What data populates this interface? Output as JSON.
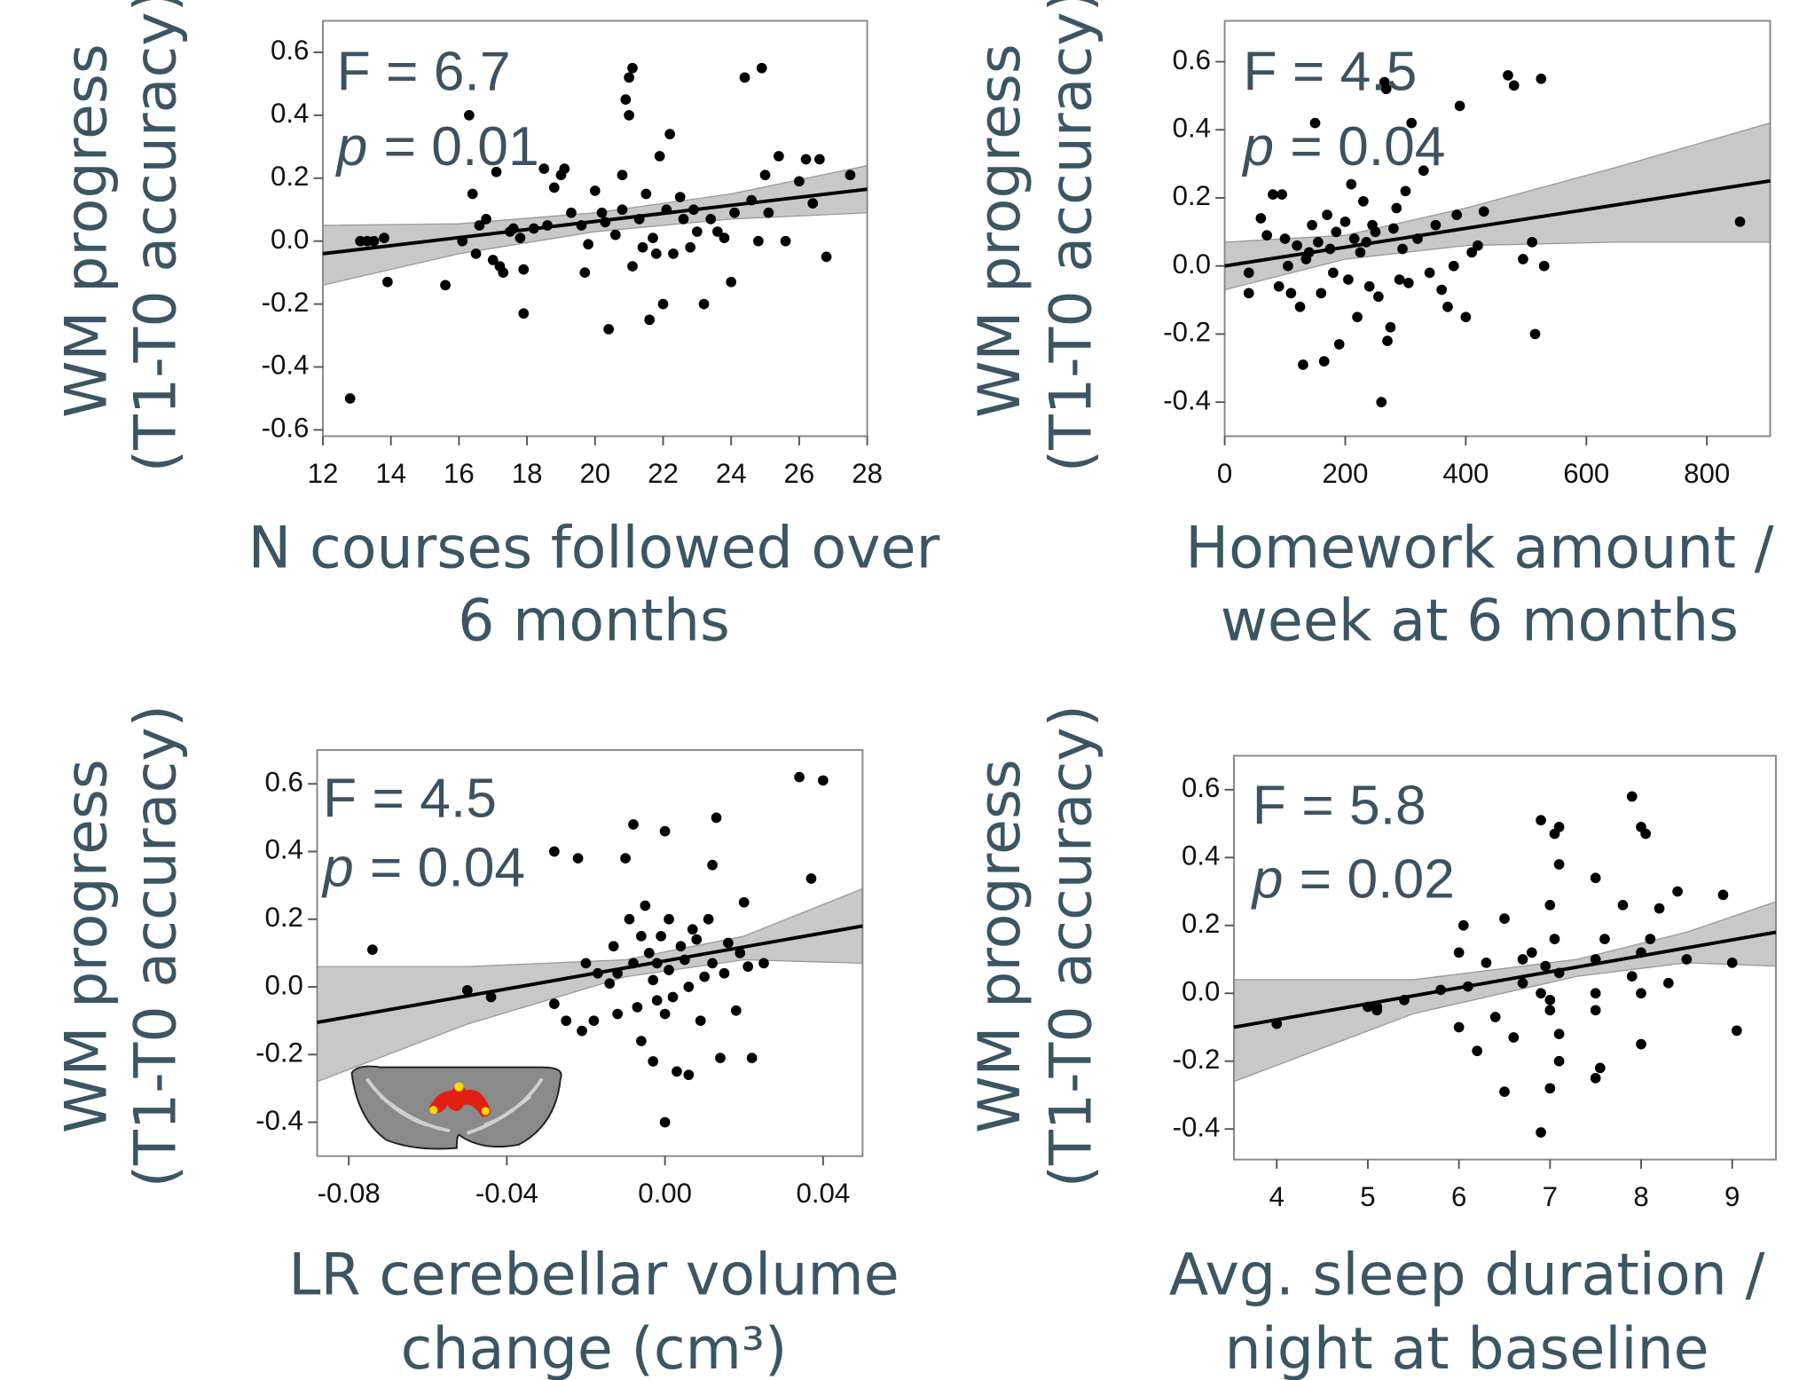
{
  "chart_data": [
    {
      "type": "scatter",
      "ylabel": [
        "WM progress",
        "(T1-T0 accuracy)"
      ],
      "xlabel": [
        "N courses followed over",
        "6 months"
      ],
      "stat_f": "F = 6.7",
      "stat_p_symbol": "p",
      "stat_p": "= 0.01",
      "xlim": [
        12,
        28
      ],
      "ylim": [
        -0.62,
        0.7
      ],
      "xticks": [
        12,
        14,
        16,
        18,
        20,
        22,
        24,
        26,
        28
      ],
      "yticks": [
        -0.6,
        -0.4,
        -0.2,
        {
          "value": 0,
          "label": "0.0"
        },
        0.2,
        0.4,
        0.6
      ],
      "color": "#000000",
      "band_color": "#c8c8c8",
      "x": [
        12.8,
        13.1,
        13.3,
        13.5,
        13.8,
        13.9,
        15.6,
        16.1,
        16.3,
        16.4,
        16.5,
        16.6,
        16.8,
        17.0,
        17.1,
        17.2,
        17.3,
        17.5,
        17.6,
        17.8,
        17.9,
        17.9,
        18.2,
        18.5,
        18.6,
        18.8,
        19.0,
        19.1,
        19.3,
        19.6,
        19.7,
        19.8,
        20.0,
        20.2,
        20.3,
        20.4,
        20.6,
        20.8,
        20.8,
        20.9,
        21.0,
        21.1,
        21.0,
        21.1,
        21.3,
        21.4,
        21.5,
        21.6,
        21.7,
        21.8,
        21.9,
        22.0,
        22.1,
        22.2,
        22.3,
        22.5,
        22.6,
        22.8,
        22.9,
        23.0,
        23.2,
        23.4,
        23.6,
        23.8,
        24.0,
        24.1,
        24.4,
        24.6,
        24.8,
        24.9,
        25.0,
        25.1,
        25.4,
        25.6,
        26.0,
        26.2,
        26.4,
        26.6,
        26.8,
        27.5
      ],
      "values": [
        -0.5,
        0.0,
        0.0,
        0.0,
        0.01,
        -0.13,
        -0.14,
        0.0,
        0.4,
        0.15,
        -0.04,
        0.05,
        0.07,
        -0.06,
        0.22,
        -0.08,
        -0.1,
        0.03,
        0.04,
        0.01,
        -0.23,
        -0.09,
        0.04,
        0.23,
        0.05,
        0.17,
        0.21,
        0.23,
        0.09,
        0.05,
        -0.1,
        -0.01,
        0.16,
        0.09,
        0.06,
        -0.28,
        0.02,
        0.1,
        0.21,
        0.45,
        0.52,
        0.55,
        0.4,
        -0.08,
        0.07,
        -0.02,
        0.15,
        -0.25,
        0.01,
        -0.04,
        0.27,
        -0.2,
        0.1,
        0.34,
        -0.04,
        0.14,
        0.07,
        -0.02,
        0.1,
        0.03,
        -0.2,
        0.07,
        0.03,
        0.01,
        -0.13,
        0.09,
        0.52,
        0.13,
        0.0,
        0.55,
        0.21,
        0.09,
        0.27,
        0.0,
        0.19,
        0.26,
        0.12,
        0.26,
        -0.05,
        0.21
      ],
      "fit": {
        "x": [
          12,
          28
        ],
        "y": [
          -0.04,
          0.165
        ]
      },
      "band": {
        "x": [
          12,
          16,
          20,
          24,
          28
        ],
        "lower": [
          -0.14,
          -0.04,
          0.03,
          0.07,
          0.09
        ],
        "upper": [
          0.05,
          0.055,
          0.09,
          0.15,
          0.24
        ]
      }
    },
    {
      "type": "scatter",
      "ylabel": [
        "WM progress",
        "(T1-T0 accuracy)"
      ],
      "xlabel": [
        "Homework amount /",
        "week at 6 months"
      ],
      "stat_f": "F = 4.5",
      "stat_p_symbol": "p",
      "stat_p": "= 0.04",
      "xlim": [
        0,
        905
      ],
      "ylim": [
        -0.5,
        0.72
      ],
      "xticks": [
        0,
        200,
        400,
        600,
        800
      ],
      "yticks": [
        -0.4,
        -0.2,
        {
          "value": 0,
          "label": "0.0"
        },
        0.2,
        0.4,
        0.6
      ],
      "color": "#000000",
      "band_color": "#c8c8c8",
      "x": [
        40,
        40,
        60,
        70,
        80,
        90,
        95,
        100,
        105,
        110,
        120,
        125,
        130,
        135,
        140,
        145,
        150,
        155,
        160,
        165,
        170,
        175,
        180,
        185,
        190,
        200,
        205,
        210,
        215,
        220,
        225,
        230,
        235,
        240,
        245,
        250,
        255,
        260,
        265,
        268,
        270,
        275,
        280,
        285,
        290,
        295,
        300,
        305,
        310,
        320,
        330,
        340,
        350,
        360,
        370,
        380,
        385,
        390,
        400,
        410,
        420,
        430,
        470,
        480,
        495,
        510,
        515,
        525,
        530,
        855
      ],
      "values": [
        -0.08,
        -0.02,
        0.14,
        0.09,
        0.21,
        -0.06,
        0.21,
        0.08,
        0.0,
        -0.08,
        0.06,
        -0.12,
        -0.29,
        0.02,
        0.04,
        0.12,
        0.42,
        0.07,
        -0.08,
        -0.28,
        0.15,
        0.05,
        -0.02,
        0.1,
        -0.23,
        0.13,
        -0.04,
        0.24,
        0.08,
        -0.15,
        0.04,
        0.19,
        0.07,
        -0.06,
        0.12,
        0.1,
        -0.09,
        -0.4,
        0.54,
        0.52,
        -0.22,
        -0.18,
        0.11,
        0.17,
        -0.04,
        0.05,
        0.22,
        -0.05,
        0.42,
        0.08,
        0.28,
        -0.02,
        0.12,
        -0.07,
        -0.12,
        0.0,
        0.15,
        0.47,
        -0.15,
        0.04,
        0.06,
        0.16,
        0.56,
        0.53,
        0.02,
        0.07,
        -0.2,
        0.55,
        0.0,
        0.13
      ],
      "fit": {
        "x": [
          0,
          905
        ],
        "y": [
          0.0,
          0.25
        ]
      },
      "band": {
        "x": [
          0,
          200,
          400,
          650,
          905
        ],
        "lower": [
          -0.07,
          0.02,
          0.06,
          0.07,
          0.07
        ],
        "upper": [
          0.07,
          0.09,
          0.17,
          0.29,
          0.42
        ]
      }
    },
    {
      "type": "scatter",
      "ylabel": [
        "WM progress",
        "(T1-T0 accuracy)"
      ],
      "xlabel": [
        "LR cerebellar volume",
        "change (cm³)"
      ],
      "stat_f": "F = 4.5",
      "stat_p_symbol": "p",
      "stat_p": "= 0.04",
      "xlim": [
        -0.088,
        0.05
      ],
      "ylim": [
        -0.5,
        0.7
      ],
      "xticks": [
        -0.08,
        -0.04,
        {
          "value": 0,
          "label": "0.00"
        },
        0.04
      ],
      "yticks": [
        -0.4,
        -0.2,
        {
          "value": 0,
          "label": "0.0"
        },
        0.2,
        0.4,
        0.6
      ],
      "color": "#000000",
      "band_color": "#c8c8c8",
      "x": [
        -0.074,
        -0.05,
        -0.044,
        -0.028,
        -0.022,
        -0.028,
        -0.025,
        -0.021,
        -0.02,
        -0.018,
        -0.017,
        -0.014,
        -0.013,
        -0.012,
        -0.012,
        -0.01,
        -0.009,
        -0.008,
        -0.008,
        -0.007,
        -0.006,
        -0.006,
        -0.005,
        -0.004,
        -0.003,
        -0.003,
        -0.002,
        -0.002,
        -0.001,
        0.0,
        0.0,
        0.0,
        0.001,
        0.001,
        0.002,
        0.003,
        0.004,
        0.005,
        0.006,
        0.006,
        0.007,
        0.008,
        0.009,
        0.01,
        0.011,
        0.012,
        0.012,
        0.013,
        0.014,
        0.015,
        0.016,
        0.018,
        0.019,
        0.02,
        0.021,
        0.022,
        0.025,
        0.034,
        0.037,
        0.04
      ],
      "values": [
        0.11,
        -0.01,
        -0.03,
        0.4,
        0.38,
        -0.05,
        -0.1,
        -0.13,
        0.07,
        -0.1,
        0.04,
        0.01,
        0.12,
        0.04,
        -0.08,
        0.38,
        0.2,
        0.07,
        0.48,
        -0.06,
        0.15,
        -0.16,
        0.24,
        0.1,
        0.02,
        -0.22,
        0.07,
        -0.04,
        0.15,
        -0.08,
        0.46,
        -0.4,
        0.2,
        0.05,
        -0.03,
        -0.25,
        0.12,
        0.08,
        0.0,
        -0.26,
        0.17,
        0.14,
        -0.1,
        0.03,
        0.2,
        0.36,
        0.07,
        0.5,
        -0.21,
        0.04,
        0.13,
        -0.07,
        0.1,
        0.25,
        0.06,
        -0.21,
        0.07,
        0.62,
        0.32,
        0.61
      ],
      "fit": {
        "x": [
          -0.088,
          0.05
        ],
        "y": [
          -0.105,
          0.18
        ]
      },
      "band": {
        "x": [
          -0.088,
          -0.05,
          -0.01,
          0.02,
          0.05
        ],
        "lower": [
          -0.28,
          -0.11,
          0.03,
          0.08,
          0.07
        ],
        "upper": [
          0.06,
          0.06,
          0.08,
          0.15,
          0.29
        ]
      }
    },
    {
      "type": "scatter",
      "ylabel": [
        "WM progress",
        "(T1-T0 accuracy)"
      ],
      "xlabel": [
        "Avg. sleep duration /",
        "night at baseline"
      ],
      "stat_f": "F = 5.8",
      "stat_p_symbol": "p",
      "stat_p": "= 0.02",
      "xlim": [
        3.53,
        9.48
      ],
      "ylim": [
        -0.49,
        0.7
      ],
      "xticks": [
        4,
        5,
        6,
        7,
        8,
        9
      ],
      "yticks": [
        -0.4,
        -0.2,
        {
          "value": 0,
          "label": "0.0"
        },
        0.2,
        0.4,
        0.6
      ],
      "color": "#000000",
      "band_color": "#c8c8c8",
      "x": [
        4.0,
        5.0,
        5.1,
        5.1,
        5.4,
        5.8,
        6.0,
        6.05,
        6.1,
        6.0,
        6.2,
        6.3,
        6.4,
        6.5,
        6.5,
        6.6,
        6.7,
        6.7,
        6.8,
        6.9,
        6.9,
        6.9,
        6.95,
        7.0,
        7.0,
        7.0,
        7.0,
        7.05,
        7.05,
        7.1,
        7.1,
        7.1,
        7.1,
        7.1,
        7.5,
        7.5,
        7.5,
        7.5,
        7.5,
        7.55,
        7.6,
        7.8,
        7.9,
        7.9,
        8.0,
        8.0,
        8.0,
        8.0,
        8.05,
        8.1,
        8.2,
        8.3,
        8.4,
        8.5,
        8.9,
        9.0,
        9.05
      ],
      "values": [
        -0.09,
        -0.04,
        -0.04,
        -0.05,
        -0.02,
        0.01,
        0.12,
        0.2,
        0.02,
        -0.1,
        -0.17,
        0.09,
        -0.07,
        0.22,
        -0.29,
        -0.13,
        0.1,
        0.03,
        0.12,
        -0.41,
        0.51,
        0.0,
        0.08,
        -0.02,
        0.26,
        -0.05,
        -0.28,
        0.47,
        0.16,
        0.49,
        -0.12,
        0.38,
        0.06,
        -0.2,
        0.34,
        0.1,
        -0.05,
        -0.25,
        0.0,
        -0.22,
        0.16,
        0.26,
        0.05,
        0.58,
        0.49,
        -0.15,
        0.0,
        0.12,
        0.47,
        0.16,
        0.25,
        0.03,
        0.3,
        0.1,
        0.29,
        0.09,
        -0.11
      ],
      "fit": {
        "x": [
          3.53,
          9.48
        ],
        "y": [
          -0.1,
          0.18
        ]
      },
      "band": {
        "x": [
          3.53,
          5.5,
          7.3,
          8.5,
          9.48
        ],
        "lower": [
          -0.26,
          -0.06,
          0.05,
          0.09,
          0.08
        ],
        "upper": [
          0.04,
          0.04,
          0.1,
          0.18,
          0.27
        ]
      }
    }
  ]
}
